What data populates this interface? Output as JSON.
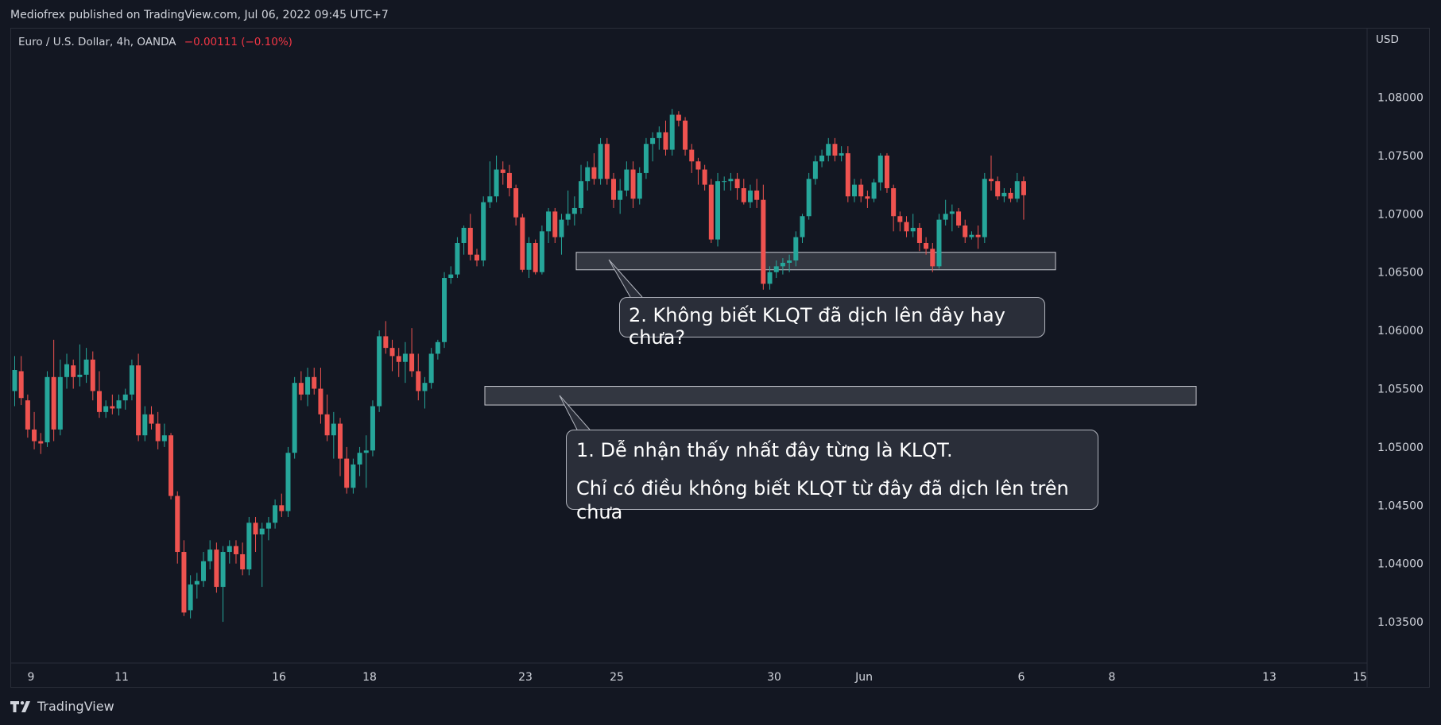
{
  "header": {
    "publisher_line": "Mediofrex published on TradingView.com, Jul 06, 2022 09:45 UTC+7"
  },
  "legend": {
    "symbol": "Euro / U.S. Dollar, 4h, OANDA",
    "change": "−0.00111 (−0.10%)"
  },
  "price_axis": {
    "currency": "USD"
  },
  "annotations": {
    "callout_1_line1": "1. Dễ nhận thấy nhất đây từng là KLQT.",
    "callout_1_line2": "Chỉ có điều không biết KLQT từ đây đã dịch lên trên chưa",
    "callout_2": "2. Không biết KLQT đã dịch lên đây hay chưa?"
  },
  "footer": {
    "brand": "TradingView"
  },
  "colors": {
    "background": "#131722",
    "up_candle": "#26a69a",
    "down_candle": "#ef5350",
    "zone_fill": "#3a3d46",
    "zone_border": "#c8cad0"
  },
  "chart_data": {
    "type": "candlestick",
    "instrument": "Euro / U.S. Dollar, 4h, OANDA",
    "ylim": [
      1.0325,
      1.0845
    ],
    "y_ticks": [
      "1.08000",
      "1.07500",
      "1.07000",
      "1.06500",
      "1.06000",
      "1.05500",
      "1.05000",
      "1.04500",
      "1.04000",
      "1.03500"
    ],
    "x_ticks": [
      "9",
      "11",
      "16",
      "18",
      "23",
      "25",
      "30",
      "Jun",
      "6",
      "8",
      "13",
      "15"
    ],
    "zones": [
      {
        "low": 1.0536,
        "high": 1.0552
      },
      {
        "low": 1.0652,
        "high": 1.0667
      }
    ],
    "candles": [
      {
        "o": 1.0548,
        "h": 1.0578,
        "l": 1.0535,
        "c": 1.0566
      },
      {
        "o": 1.0565,
        "h": 1.0578,
        "l": 1.0536,
        "c": 1.0542
      },
      {
        "o": 1.054,
        "h": 1.0545,
        "l": 1.0508,
        "c": 1.0515
      },
      {
        "o": 1.0515,
        "h": 1.053,
        "l": 1.0498,
        "c": 1.0505
      },
      {
        "o": 1.0505,
        "h": 1.0512,
        "l": 1.0494,
        "c": 1.0503
      },
      {
        "o": 1.0504,
        "h": 1.0565,
        "l": 1.05,
        "c": 1.056
      },
      {
        "o": 1.056,
        "h": 1.0592,
        "l": 1.0505,
        "c": 1.0515
      },
      {
        "o": 1.0515,
        "h": 1.0575,
        "l": 1.051,
        "c": 1.056
      },
      {
        "o": 1.056,
        "h": 1.058,
        "l": 1.055,
        "c": 1.0571
      },
      {
        "o": 1.057,
        "h": 1.0575,
        "l": 1.055,
        "c": 1.056
      },
      {
        "o": 1.056,
        "h": 1.0588,
        "l": 1.0552,
        "c": 1.0562
      },
      {
        "o": 1.0562,
        "h": 1.0585,
        "l": 1.0555,
        "c": 1.0575
      },
      {
        "o": 1.0575,
        "h": 1.0582,
        "l": 1.054,
        "c": 1.0548
      },
      {
        "o": 1.0548,
        "h": 1.0565,
        "l": 1.0525,
        "c": 1.053
      },
      {
        "o": 1.053,
        "h": 1.054,
        "l": 1.0525,
        "c": 1.0535
      },
      {
        "o": 1.0535,
        "h": 1.0545,
        "l": 1.0528,
        "c": 1.0533
      },
      {
        "o": 1.0533,
        "h": 1.0545,
        "l": 1.0527,
        "c": 1.054
      },
      {
        "o": 1.054,
        "h": 1.055,
        "l": 1.0532,
        "c": 1.0545
      },
      {
        "o": 1.0545,
        "h": 1.0575,
        "l": 1.054,
        "c": 1.057
      },
      {
        "o": 1.057,
        "h": 1.058,
        "l": 1.0505,
        "c": 1.051
      },
      {
        "o": 1.051,
        "h": 1.0535,
        "l": 1.0505,
        "c": 1.0528
      },
      {
        "o": 1.0528,
        "h": 1.0535,
        "l": 1.0515,
        "c": 1.052
      },
      {
        "o": 1.052,
        "h": 1.053,
        "l": 1.0498,
        "c": 1.0505
      },
      {
        "o": 1.0505,
        "h": 1.052,
        "l": 1.05,
        "c": 1.051
      },
      {
        "o": 1.051,
        "h": 1.0512,
        "l": 1.0455,
        "c": 1.0458
      },
      {
        "o": 1.0458,
        "h": 1.0462,
        "l": 1.04,
        "c": 1.041
      },
      {
        "o": 1.041,
        "h": 1.042,
        "l": 1.0355,
        "c": 1.0358
      },
      {
        "o": 1.036,
        "h": 1.039,
        "l": 1.0353,
        "c": 1.0382
      },
      {
        "o": 1.0382,
        "h": 1.0392,
        "l": 1.037,
        "c": 1.0385
      },
      {
        "o": 1.0385,
        "h": 1.041,
        "l": 1.038,
        "c": 1.0402
      },
      {
        "o": 1.0402,
        "h": 1.042,
        "l": 1.0395,
        "c": 1.0412
      },
      {
        "o": 1.0412,
        "h": 1.0418,
        "l": 1.0375,
        "c": 1.038
      },
      {
        "o": 1.038,
        "h": 1.0415,
        "l": 1.035,
        "c": 1.041
      },
      {
        "o": 1.041,
        "h": 1.042,
        "l": 1.04,
        "c": 1.0415
      },
      {
        "o": 1.0415,
        "h": 1.042,
        "l": 1.04,
        "c": 1.0408
      },
      {
        "o": 1.0408,
        "h": 1.0418,
        "l": 1.039,
        "c": 1.0395
      },
      {
        "o": 1.0395,
        "h": 1.044,
        "l": 1.039,
        "c": 1.0435
      },
      {
        "o": 1.0435,
        "h": 1.044,
        "l": 1.041,
        "c": 1.0425
      },
      {
        "o": 1.0425,
        "h": 1.0435,
        "l": 1.038,
        "c": 1.043
      },
      {
        "o": 1.043,
        "h": 1.044,
        "l": 1.042,
        "c": 1.0435
      },
      {
        "o": 1.0435,
        "h": 1.0455,
        "l": 1.043,
        "c": 1.045
      },
      {
        "o": 1.045,
        "h": 1.046,
        "l": 1.044,
        "c": 1.0445
      },
      {
        "o": 1.0445,
        "h": 1.05,
        "l": 1.044,
        "c": 1.0495
      },
      {
        "o": 1.0495,
        "h": 1.056,
        "l": 1.049,
        "c": 1.0555
      },
      {
        "o": 1.0555,
        "h": 1.0565,
        "l": 1.054,
        "c": 1.0545
      },
      {
        "o": 1.0545,
        "h": 1.0568,
        "l": 1.0535,
        "c": 1.056
      },
      {
        "o": 1.056,
        "h": 1.0568,
        "l": 1.0545,
        "c": 1.055
      },
      {
        "o": 1.055,
        "h": 1.0568,
        "l": 1.052,
        "c": 1.0528
      },
      {
        "o": 1.0528,
        "h": 1.0545,
        "l": 1.0505,
        "c": 1.051
      },
      {
        "o": 1.051,
        "h": 1.053,
        "l": 1.049,
        "c": 1.052
      },
      {
        "o": 1.052,
        "h": 1.0525,
        "l": 1.0475,
        "c": 1.049
      },
      {
        "o": 1.049,
        "h": 1.05,
        "l": 1.046,
        "c": 1.0465
      },
      {
        "o": 1.0465,
        "h": 1.049,
        "l": 1.046,
        "c": 1.0485
      },
      {
        "o": 1.0485,
        "h": 1.05,
        "l": 1.0475,
        "c": 1.0495
      },
      {
        "o": 1.0495,
        "h": 1.051,
        "l": 1.0465,
        "c": 1.0497
      },
      {
        "o": 1.0497,
        "h": 1.054,
        "l": 1.0492,
        "c": 1.0535
      },
      {
        "o": 1.0535,
        "h": 1.06,
        "l": 1.053,
        "c": 1.0595
      },
      {
        "o": 1.0595,
        "h": 1.0608,
        "l": 1.058,
        "c": 1.0585
      },
      {
        "o": 1.0585,
        "h": 1.0592,
        "l": 1.0565,
        "c": 1.0578
      },
      {
        "o": 1.0578,
        "h": 1.0585,
        "l": 1.056,
        "c": 1.0573
      },
      {
        "o": 1.0573,
        "h": 1.059,
        "l": 1.0555,
        "c": 1.058
      },
      {
        "o": 1.058,
        "h": 1.0602,
        "l": 1.056,
        "c": 1.0565
      },
      {
        "o": 1.0565,
        "h": 1.058,
        "l": 1.054,
        "c": 1.0548
      },
      {
        "o": 1.0548,
        "h": 1.056,
        "l": 1.0533,
        "c": 1.0555
      },
      {
        "o": 1.0555,
        "h": 1.0585,
        "l": 1.055,
        "c": 1.058
      },
      {
        "o": 1.058,
        "h": 1.0592,
        "l": 1.0575,
        "c": 1.059
      },
      {
        "o": 1.059,
        "h": 1.065,
        "l": 1.0585,
        "c": 1.0645
      },
      {
        "o": 1.0645,
        "h": 1.0655,
        "l": 1.064,
        "c": 1.0648
      },
      {
        "o": 1.0648,
        "h": 1.068,
        "l": 1.0645,
        "c": 1.0675
      },
      {
        "o": 1.0675,
        "h": 1.069,
        "l": 1.0665,
        "c": 1.0688
      },
      {
        "o": 1.0688,
        "h": 1.07,
        "l": 1.066,
        "c": 1.0665
      },
      {
        "o": 1.0665,
        "h": 1.067,
        "l": 1.0655,
        "c": 1.066
      },
      {
        "o": 1.066,
        "h": 1.0715,
        "l": 1.0655,
        "c": 1.071
      },
      {
        "o": 1.071,
        "h": 1.0745,
        "l": 1.0705,
        "c": 1.0715
      },
      {
        "o": 1.0715,
        "h": 1.075,
        "l": 1.071,
        "c": 1.0738
      },
      {
        "o": 1.0738,
        "h": 1.0745,
        "l": 1.0725,
        "c": 1.0735
      },
      {
        "o": 1.0735,
        "h": 1.0742,
        "l": 1.0715,
        "c": 1.0722
      },
      {
        "o": 1.0722,
        "h": 1.0725,
        "l": 1.069,
        "c": 1.0697
      },
      {
        "o": 1.0697,
        "h": 1.07,
        "l": 1.065,
        "c": 1.0652
      },
      {
        "o": 1.0652,
        "h": 1.068,
        "l": 1.0645,
        "c": 1.0675
      },
      {
        "o": 1.0675,
        "h": 1.0678,
        "l": 1.0648,
        "c": 1.065
      },
      {
        "o": 1.065,
        "h": 1.069,
        "l": 1.0648,
        "c": 1.0685
      },
      {
        "o": 1.0685,
        "h": 1.0705,
        "l": 1.0675,
        "c": 1.0702
      },
      {
        "o": 1.0702,
        "h": 1.0705,
        "l": 1.0675,
        "c": 1.068
      },
      {
        "o": 1.068,
        "h": 1.07,
        "l": 1.0665,
        "c": 1.0695
      },
      {
        "o": 1.0695,
        "h": 1.072,
        "l": 1.069,
        "c": 1.07
      },
      {
        "o": 1.07,
        "h": 1.0715,
        "l": 1.069,
        "c": 1.0705
      },
      {
        "o": 1.0705,
        "h": 1.0742,
        "l": 1.07,
        "c": 1.0728
      },
      {
        "o": 1.0728,
        "h": 1.0745,
        "l": 1.072,
        "c": 1.074
      },
      {
        "o": 1.074,
        "h": 1.0752,
        "l": 1.0725,
        "c": 1.073
      },
      {
        "o": 1.073,
        "h": 1.0765,
        "l": 1.0725,
        "c": 1.076
      },
      {
        "o": 1.076,
        "h": 1.0765,
        "l": 1.0725,
        "c": 1.073
      },
      {
        "o": 1.073,
        "h": 1.0735,
        "l": 1.0705,
        "c": 1.0712
      },
      {
        "o": 1.0712,
        "h": 1.073,
        "l": 1.07,
        "c": 1.072
      },
      {
        "o": 1.072,
        "h": 1.0745,
        "l": 1.0715,
        "c": 1.0738
      },
      {
        "o": 1.0738,
        "h": 1.0745,
        "l": 1.0705,
        "c": 1.0713
      },
      {
        "o": 1.0713,
        "h": 1.074,
        "l": 1.0708,
        "c": 1.0735
      },
      {
        "o": 1.0735,
        "h": 1.0765,
        "l": 1.073,
        "c": 1.076
      },
      {
        "o": 1.076,
        "h": 1.077,
        "l": 1.0745,
        "c": 1.0765
      },
      {
        "o": 1.0765,
        "h": 1.0775,
        "l": 1.0755,
        "c": 1.077
      },
      {
        "o": 1.077,
        "h": 1.078,
        "l": 1.075,
        "c": 1.0755
      },
      {
        "o": 1.0755,
        "h": 1.079,
        "l": 1.075,
        "c": 1.0785
      },
      {
        "o": 1.0785,
        "h": 1.0788,
        "l": 1.0775,
        "c": 1.078
      },
      {
        "o": 1.078,
        "h": 1.0783,
        "l": 1.075,
        "c": 1.0755
      },
      {
        "o": 1.0755,
        "h": 1.076,
        "l": 1.0735,
        "c": 1.0745
      },
      {
        "o": 1.0745,
        "h": 1.0748,
        "l": 1.0725,
        "c": 1.0738
      },
      {
        "o": 1.0738,
        "h": 1.0742,
        "l": 1.072,
        "c": 1.0725
      },
      {
        "o": 1.0725,
        "h": 1.073,
        "l": 1.0675,
        "c": 1.0678
      },
      {
        "o": 1.0678,
        "h": 1.0735,
        "l": 1.0672,
        "c": 1.0728
      },
      {
        "o": 1.0728,
        "h": 1.0732,
        "l": 1.072,
        "c": 1.0728
      },
      {
        "o": 1.0728,
        "h": 1.0735,
        "l": 1.072,
        "c": 1.073
      },
      {
        "o": 1.073,
        "h": 1.0735,
        "l": 1.0712,
        "c": 1.0722
      },
      {
        "o": 1.0722,
        "h": 1.073,
        "l": 1.0708,
        "c": 1.071
      },
      {
        "o": 1.071,
        "h": 1.0725,
        "l": 1.0705,
        "c": 1.072
      },
      {
        "o": 1.072,
        "h": 1.073,
        "l": 1.0705,
        "c": 1.0712
      },
      {
        "o": 1.0712,
        "h": 1.0725,
        "l": 1.0635,
        "c": 1.064
      },
      {
        "o": 1.064,
        "h": 1.0655,
        "l": 1.0635,
        "c": 1.065
      },
      {
        "o": 1.065,
        "h": 1.066,
        "l": 1.0645,
        "c": 1.0655
      },
      {
        "o": 1.0655,
        "h": 1.0662,
        "l": 1.0648,
        "c": 1.0658
      },
      {
        "o": 1.0658,
        "h": 1.0665,
        "l": 1.065,
        "c": 1.066
      },
      {
        "o": 1.066,
        "h": 1.0685,
        "l": 1.0655,
        "c": 1.068
      },
      {
        "o": 1.068,
        "h": 1.07,
        "l": 1.0675,
        "c": 1.0698
      },
      {
        "o": 1.0698,
        "h": 1.0735,
        "l": 1.0695,
        "c": 1.073
      },
      {
        "o": 1.073,
        "h": 1.075,
        "l": 1.0725,
        "c": 1.0745
      },
      {
        "o": 1.0745,
        "h": 1.0755,
        "l": 1.074,
        "c": 1.075
      },
      {
        "o": 1.075,
        "h": 1.0765,
        "l": 1.0745,
        "c": 1.076
      },
      {
        "o": 1.076,
        "h": 1.0765,
        "l": 1.0745,
        "c": 1.075
      },
      {
        "o": 1.075,
        "h": 1.0758,
        "l": 1.0745,
        "c": 1.0752
      },
      {
        "o": 1.0752,
        "h": 1.0758,
        "l": 1.071,
        "c": 1.0715
      },
      {
        "o": 1.0715,
        "h": 1.073,
        "l": 1.071,
        "c": 1.0725
      },
      {
        "o": 1.0725,
        "h": 1.073,
        "l": 1.071,
        "c": 1.0715
      },
      {
        "o": 1.0715,
        "h": 1.072,
        "l": 1.0705,
        "c": 1.0713
      },
      {
        "o": 1.0713,
        "h": 1.073,
        "l": 1.071,
        "c": 1.0727
      },
      {
        "o": 1.0727,
        "h": 1.0752,
        "l": 1.072,
        "c": 1.075
      },
      {
        "o": 1.075,
        "h": 1.0752,
        "l": 1.0718,
        "c": 1.0722
      },
      {
        "o": 1.0722,
        "h": 1.0725,
        "l": 1.0685,
        "c": 1.0698
      },
      {
        "o": 1.0698,
        "h": 1.0702,
        "l": 1.0685,
        "c": 1.0693
      },
      {
        "o": 1.0693,
        "h": 1.0698,
        "l": 1.068,
        "c": 1.0685
      },
      {
        "o": 1.0685,
        "h": 1.07,
        "l": 1.068,
        "c": 1.0688
      },
      {
        "o": 1.0688,
        "h": 1.0692,
        "l": 1.0668,
        "c": 1.0675
      },
      {
        "o": 1.0675,
        "h": 1.068,
        "l": 1.0665,
        "c": 1.067
      },
      {
        "o": 1.067,
        "h": 1.0675,
        "l": 1.065,
        "c": 1.0655
      },
      {
        "o": 1.0655,
        "h": 1.07,
        "l": 1.0653,
        "c": 1.0695
      },
      {
        "o": 1.0695,
        "h": 1.0712,
        "l": 1.069,
        "c": 1.07
      },
      {
        "o": 1.07,
        "h": 1.0708,
        "l": 1.0685,
        "c": 1.0702
      },
      {
        "o": 1.0702,
        "h": 1.0705,
        "l": 1.0688,
        "c": 1.069
      },
      {
        "o": 1.069,
        "h": 1.0695,
        "l": 1.0675,
        "c": 1.068
      },
      {
        "o": 1.068,
        "h": 1.0685,
        "l": 1.0678,
        "c": 1.0682
      },
      {
        "o": 1.0682,
        "h": 1.069,
        "l": 1.067,
        "c": 1.068
      },
      {
        "o": 1.068,
        "h": 1.0735,
        "l": 1.0675,
        "c": 1.073
      },
      {
        "o": 1.073,
        "h": 1.075,
        "l": 1.072,
        "c": 1.0728
      },
      {
        "o": 1.0728,
        "h": 1.0732,
        "l": 1.0712,
        "c": 1.0715
      },
      {
        "o": 1.0715,
        "h": 1.0722,
        "l": 1.071,
        "c": 1.0718
      },
      {
        "o": 1.0718,
        "h": 1.0722,
        "l": 1.071,
        "c": 1.0713
      },
      {
        "o": 1.0713,
        "h": 1.0735,
        "l": 1.071,
        "c": 1.0728
      },
      {
        "o": 1.0728,
        "h": 1.0732,
        "l": 1.0695,
        "c": 1.0716
      }
    ]
  }
}
